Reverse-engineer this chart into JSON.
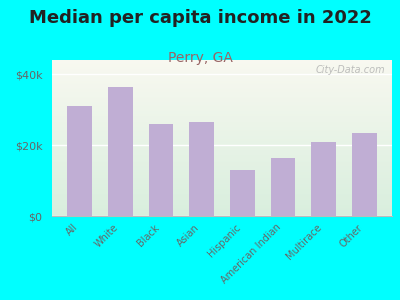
{
  "title": "Median per capita income in 2022",
  "subtitle": "Perry, GA",
  "categories": [
    "All",
    "White",
    "Black",
    "Asian",
    "Hispanic",
    "American Indian",
    "Multirace",
    "Other"
  ],
  "values": [
    31000,
    36500,
    26000,
    26500,
    13000,
    16500,
    21000,
    23500
  ],
  "bar_color": "#c0aed4",
  "title_color": "#222222",
  "subtitle_color": "#996666",
  "background_outer": "#00ffff",
  "background_inner_top": "#f8f8f0",
  "background_inner_bottom": "#d8eedd",
  "yticks": [
    0,
    20000,
    40000
  ],
  "ytick_labels": [
    "$0",
    "$20k",
    "$40k"
  ],
  "ylim": [
    0,
    44000
  ],
  "watermark": "City-Data.com",
  "title_fontsize": 13,
  "subtitle_fontsize": 10
}
